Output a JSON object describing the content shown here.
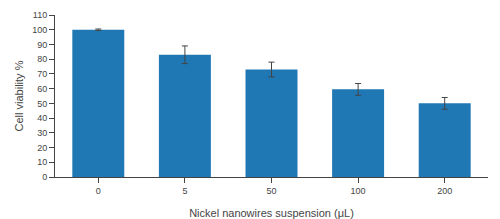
{
  "chart_data": {
    "type": "bar",
    "categories": [
      "0",
      "5",
      "50",
      "100",
      "200"
    ],
    "values": [
      100,
      83,
      73,
      59.5,
      50
    ],
    "errors": [
      0.5,
      6,
      5,
      4,
      4
    ],
    "xlabel": "Nickel nanowires suspension (μL)",
    "ylabel": "Cell viability %",
    "ylim": [
      0,
      110
    ],
    "yticks": [
      0,
      10,
      20,
      30,
      40,
      50,
      60,
      70,
      80,
      90,
      100,
      110
    ],
    "grid": false
  }
}
